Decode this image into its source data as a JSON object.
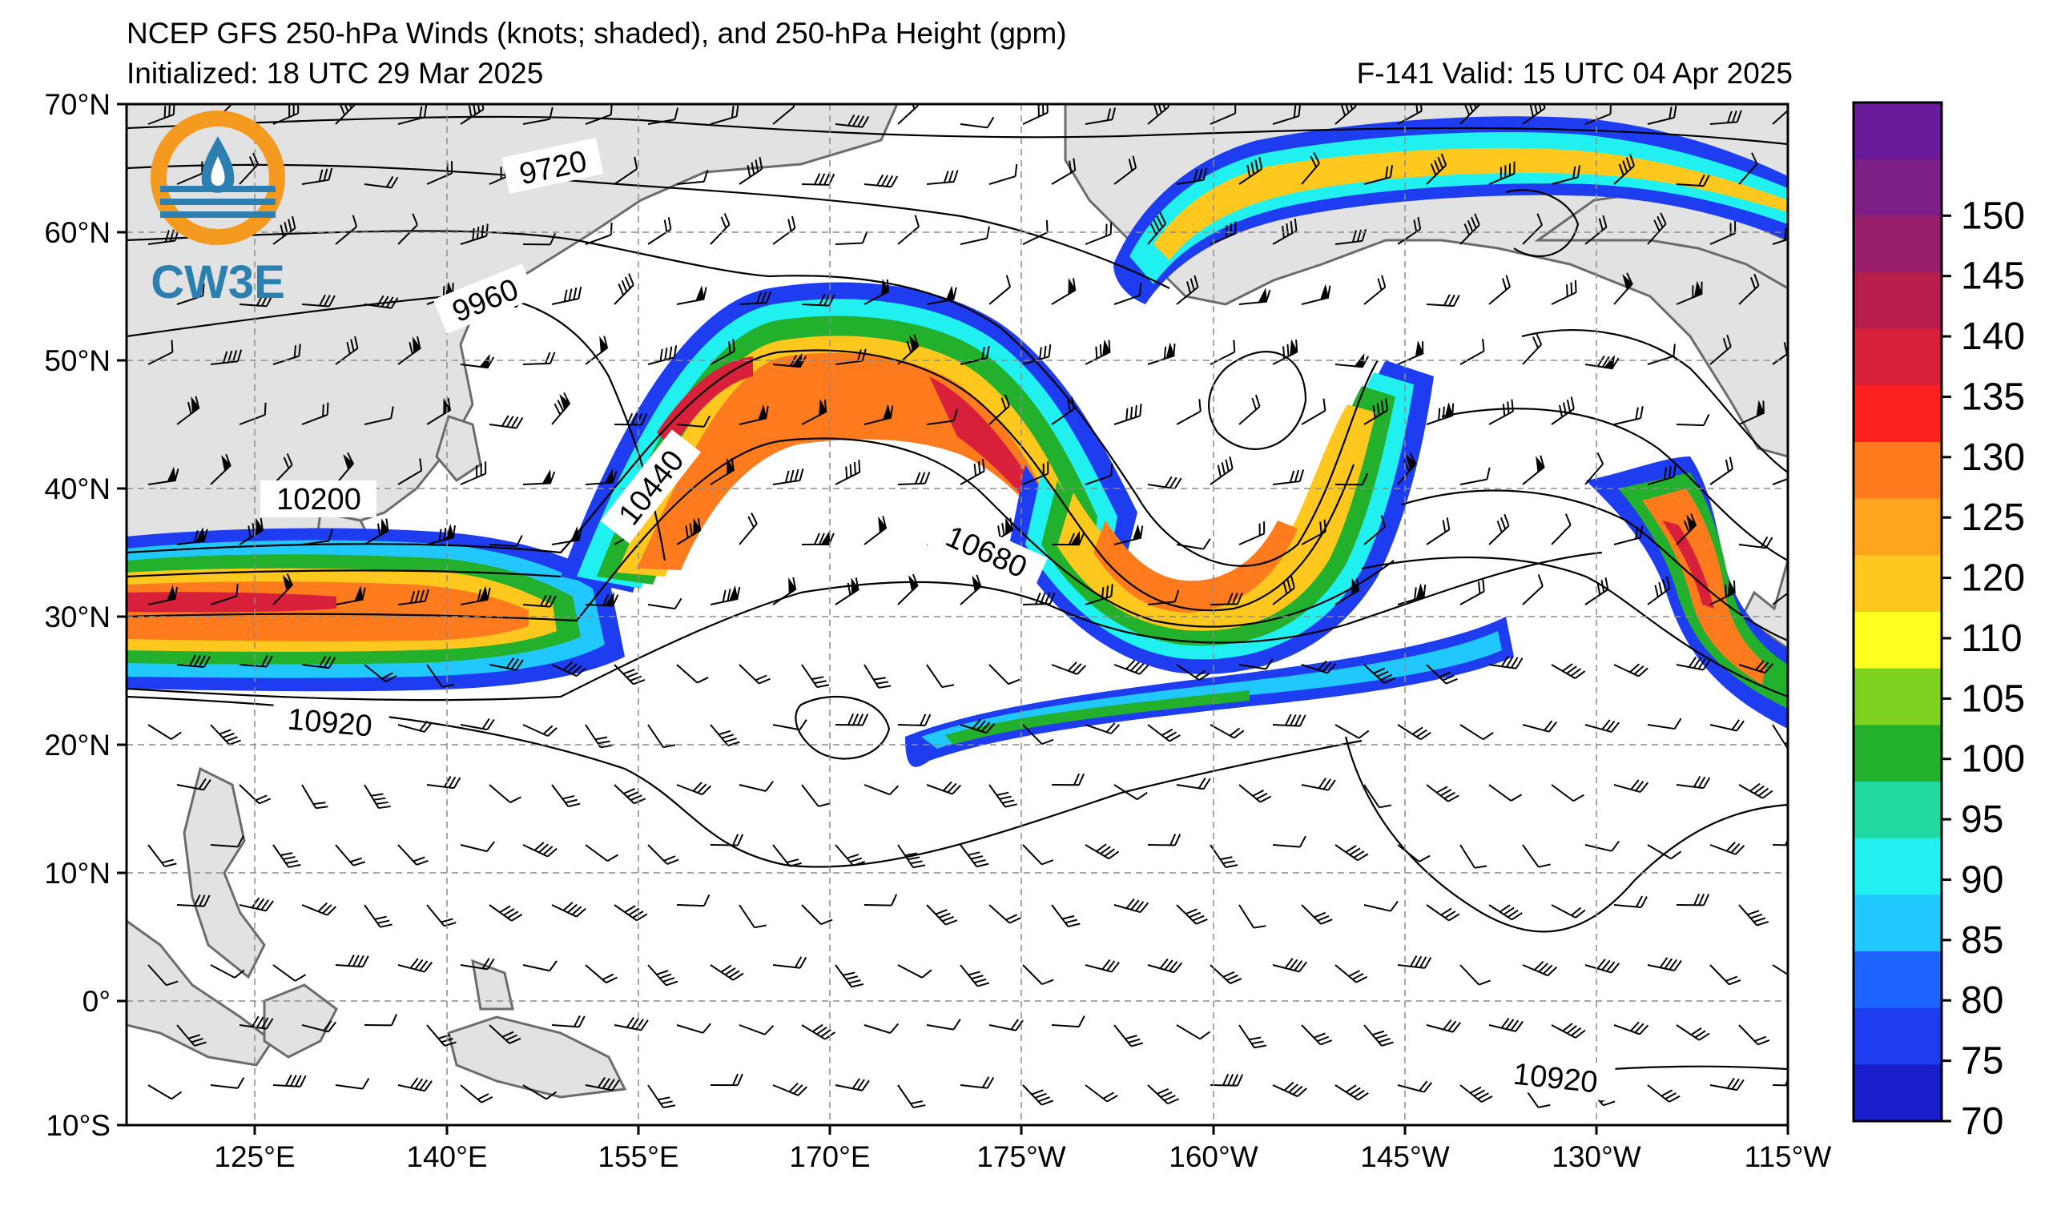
{
  "header": {
    "title": "NCEP GFS 250-hPa Winds (knots; shaded), and 250-hPa Height (gpm)",
    "initialized": "Initialized: 18 UTC 29 Mar 2025",
    "valid": "F-141  Valid: 15 UTC 04 Apr 2025"
  },
  "logo": {
    "text": "CW3E",
    "colors": {
      "ring": "#f39a1f",
      "drop": "#2d7fb0",
      "waves": "#2d7fb0"
    }
  },
  "axes": {
    "lat_labels": [
      "70°N",
      "60°N",
      "50°N",
      "40°N",
      "30°N",
      "20°N",
      "10°N",
      "0°",
      "10°S"
    ],
    "lon_labels": [
      "125°E",
      "140°E",
      "155°E",
      "170°E",
      "175°W",
      "160°W",
      "145°W",
      "130°W",
      "115°W"
    ]
  },
  "contours": [
    "9720",
    "9960",
    "10200",
    "10440",
    "10680",
    "10920",
    "10920"
  ],
  "colorbar": {
    "labels": [
      "150",
      "145",
      "140",
      "135",
      "130",
      "125",
      "120",
      "110",
      "105",
      "100",
      "95",
      "90",
      "85",
      "80",
      "75",
      "70"
    ],
    "colors": [
      "#6a1b9a",
      "#7e1f86",
      "#981e6c",
      "#b81e4c",
      "#d8203a",
      "#ff2020",
      "#ff7b1e",
      "#ffa41e",
      "#ffc81e",
      "#ffff1e",
      "#7ed321",
      "#23b02c",
      "#20d8a0",
      "#20f0f0",
      "#20c8ff",
      "#1e64ff",
      "#1e3cf0",
      "#1a1ecc"
    ]
  }
}
